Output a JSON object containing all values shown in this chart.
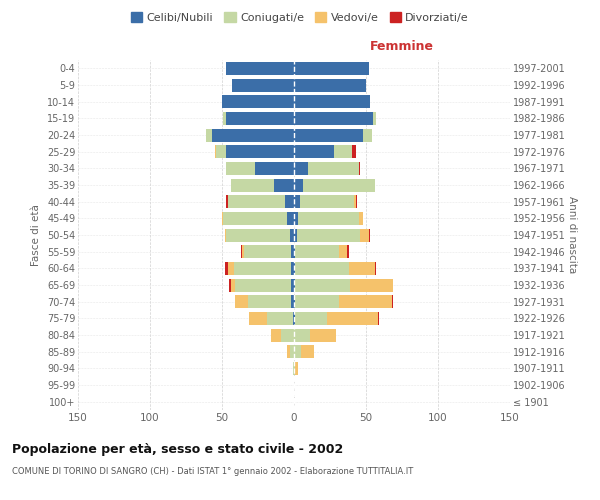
{
  "age_groups": [
    "100+",
    "95-99",
    "90-94",
    "85-89",
    "80-84",
    "75-79",
    "70-74",
    "65-69",
    "60-64",
    "55-59",
    "50-54",
    "45-49",
    "40-44",
    "35-39",
    "30-34",
    "25-29",
    "20-24",
    "15-19",
    "10-14",
    "5-9",
    "0-4"
  ],
  "birth_years": [
    "≤ 1901",
    "1902-1906",
    "1907-1911",
    "1912-1916",
    "1917-1921",
    "1922-1926",
    "1927-1931",
    "1932-1936",
    "1937-1941",
    "1942-1946",
    "1947-1951",
    "1952-1956",
    "1957-1961",
    "1962-1966",
    "1967-1971",
    "1972-1976",
    "1977-1981",
    "1982-1986",
    "1987-1991",
    "1992-1996",
    "1997-2001"
  ],
  "male": {
    "celibi": [
      0,
      0,
      0,
      0,
      0,
      1,
      2,
      2,
      2,
      2,
      3,
      5,
      6,
      14,
      27,
      47,
      57,
      47,
      50,
      43,
      47
    ],
    "coniugati": [
      0,
      0,
      1,
      3,
      9,
      18,
      30,
      39,
      40,
      33,
      44,
      44,
      40,
      30,
      20,
      7,
      4,
      2,
      0,
      0,
      0
    ],
    "vedovi": [
      0,
      0,
      0,
      2,
      7,
      12,
      9,
      3,
      4,
      1,
      1,
      1,
      0,
      0,
      0,
      1,
      0,
      0,
      0,
      0,
      0
    ],
    "divorziati": [
      0,
      0,
      0,
      0,
      0,
      0,
      0,
      1,
      2,
      1,
      0,
      0,
      1,
      0,
      0,
      0,
      0,
      0,
      0,
      0,
      0
    ]
  },
  "female": {
    "nubili": [
      0,
      0,
      0,
      0,
      0,
      1,
      1,
      1,
      1,
      1,
      2,
      3,
      4,
      6,
      10,
      28,
      48,
      55,
      53,
      50,
      52
    ],
    "coniugate": [
      0,
      0,
      1,
      5,
      11,
      22,
      30,
      38,
      37,
      30,
      44,
      42,
      38,
      50,
      35,
      12,
      6,
      2,
      0,
      0,
      0
    ],
    "vedove": [
      0,
      0,
      2,
      9,
      18,
      35,
      37,
      30,
      18,
      6,
      6,
      3,
      1,
      0,
      0,
      0,
      0,
      0,
      0,
      0,
      0
    ],
    "divorziate": [
      0,
      0,
      0,
      0,
      0,
      1,
      1,
      0,
      1,
      1,
      1,
      0,
      1,
      0,
      1,
      3,
      0,
      0,
      0,
      0,
      0
    ]
  },
  "colors": {
    "celibi": "#3b6ea8",
    "coniugati": "#c5d8a4",
    "vedovi": "#f5c26b",
    "divorziati": "#cc2222"
  },
  "xlim": 150,
  "title": "Popolazione per età, sesso e stato civile - 2002",
  "subtitle": "COMUNE DI TORINO DI SANGRO (CH) - Dati ISTAT 1° gennaio 2002 - Elaborazione TUTTITALIA.IT",
  "ylabel": "Fasce di età",
  "ylabel_right": "Anni di nascita",
  "xlabel_right": "Femmine",
  "legend_labels": [
    "Celibi/Nubili",
    "Coniugati/e",
    "Vedovi/e",
    "Divorziati/e"
  ],
  "background_color": "#ffffff",
  "grid_color": "#cccccc"
}
